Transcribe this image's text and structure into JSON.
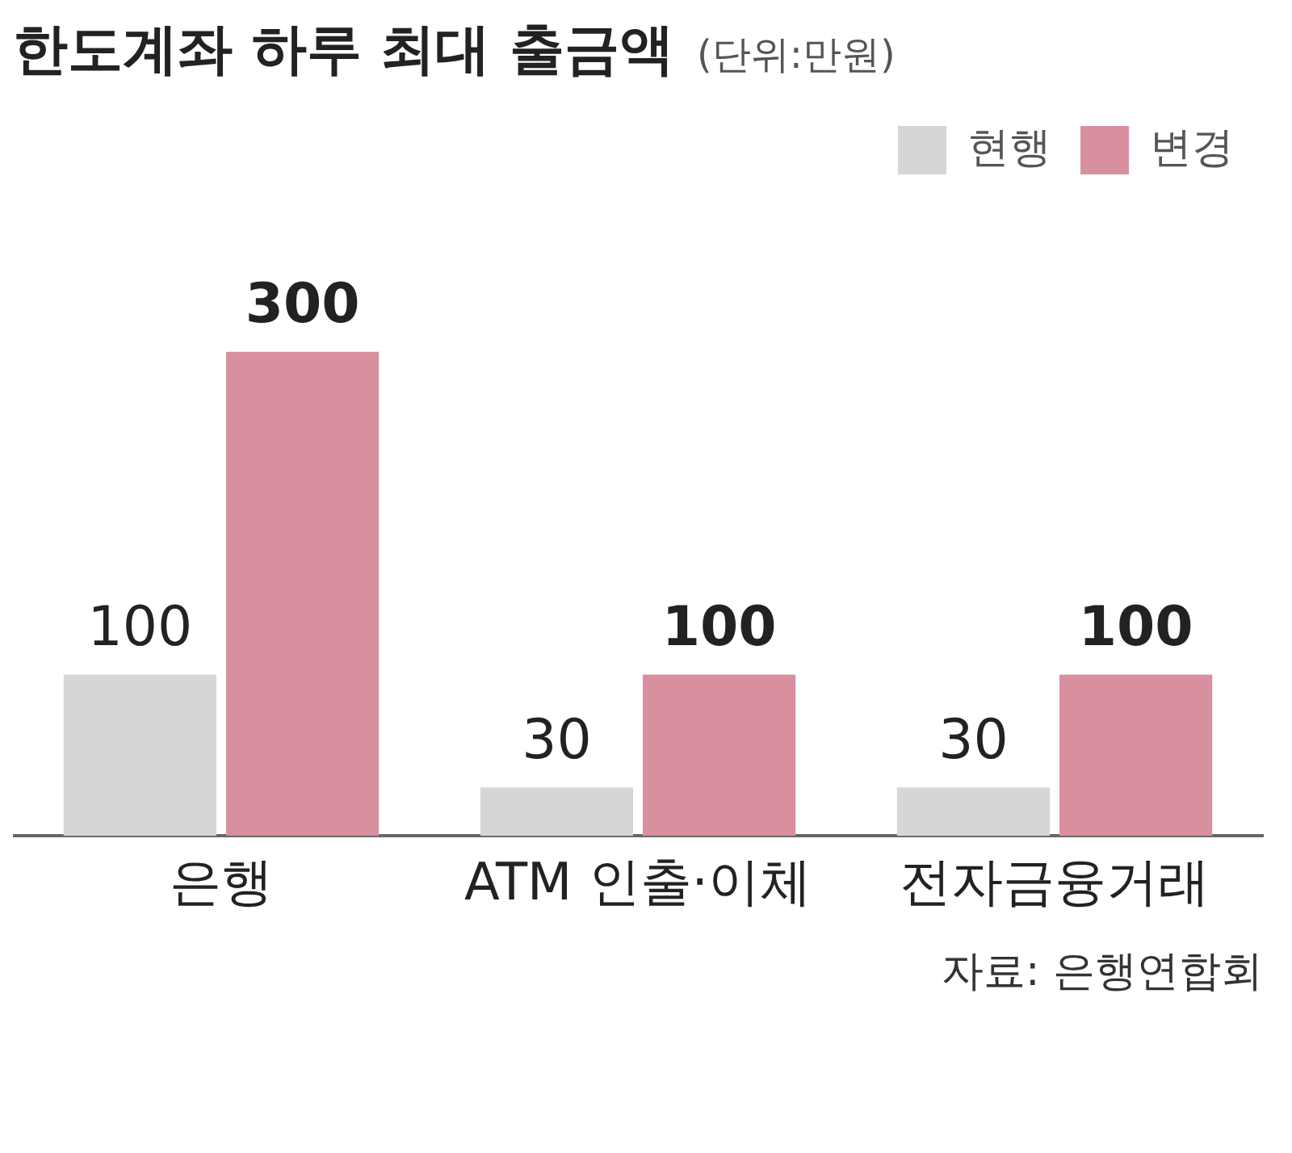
{
  "chart_data": {
    "type": "bar",
    "title": "한도계좌 하루 최대 출금액",
    "subtitle": "(단위:만원)",
    "categories": [
      "은행",
      "ATM 인출·이체",
      "전자금융거래"
    ],
    "series": [
      {
        "name": "현행",
        "color": "#d6d6d6",
        "values": [
          100,
          30,
          30
        ]
      },
      {
        "name": "변경",
        "color": "#d8909f",
        "values": [
          300,
          100,
          100
        ]
      }
    ],
    "data_labels": true,
    "legend": "top right",
    "annotations": [
      "자료: 은행연합회"
    ]
  }
}
